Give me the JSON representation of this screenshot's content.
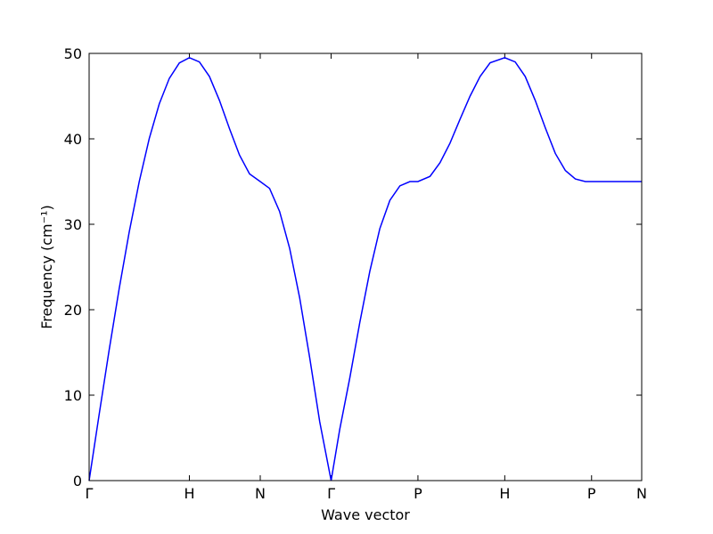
{
  "chart_data": {
    "type": "line",
    "x_label": "Wave vector",
    "y_label": "Frequency (cm⁻¹)",
    "x": [
      0,
      0.1,
      0.2,
      0.3,
      0.4,
      0.5,
      0.6,
      0.7,
      0.8,
      0.9,
      1.0,
      1.1,
      1.2,
      1.3,
      1.4,
      1.5,
      1.6,
      1.707,
      1.8,
      1.9,
      2.0,
      2.1,
      2.2,
      2.3,
      2.414,
      2.5,
      2.6,
      2.7,
      2.8,
      2.9,
      3.0,
      3.1,
      3.2,
      3.28,
      3.4,
      3.5,
      3.6,
      3.7,
      3.8,
      3.9,
      4.0,
      4.146,
      4.25,
      4.35,
      4.45,
      4.55,
      4.65,
      4.75,
      4.85,
      4.95,
      5.012,
      5.2,
      5.4,
      5.512
    ],
    "series": [
      {
        "color": "#0000ff",
        "values": [
          0,
          7.74,
          15.3,
          22.47,
          29.1,
          35.0,
          40.05,
          44.1,
          47.08,
          48.89,
          49.5,
          49.0,
          47.3,
          44.5,
          41.2,
          38.1,
          35.9,
          35.0,
          34.2,
          31.5,
          27.2,
          21.4,
          14.4,
          6.9,
          0,
          6,
          12,
          18.5,
          24.5,
          29.5,
          32.8,
          34.5,
          35.0,
          35.0,
          35.6,
          37.2,
          39.5,
          42.3,
          45.0,
          47.3,
          48.9,
          49.5,
          49.0,
          47.3,
          44.5,
          41.3,
          38.3,
          36.3,
          35.3,
          35.0,
          35.0,
          35,
          35,
          35
        ]
      }
    ],
    "xlim": [
      0,
      5.512
    ],
    "ylim": [
      0,
      50
    ],
    "yticks": [
      0,
      10,
      20,
      30,
      40,
      50
    ],
    "xticks": [
      {
        "value": 0,
        "label": "Γ"
      },
      {
        "value": 1.0,
        "label": "H"
      },
      {
        "value": 1.707,
        "label": "N"
      },
      {
        "value": 2.414,
        "label": "Γ"
      },
      {
        "value": 3.28,
        "label": "P"
      },
      {
        "value": 4.146,
        "label": "H"
      },
      {
        "value": 5.012,
        "label": "P"
      },
      {
        "value": 5.512,
        "label": "N"
      }
    ],
    "grid": false
  }
}
